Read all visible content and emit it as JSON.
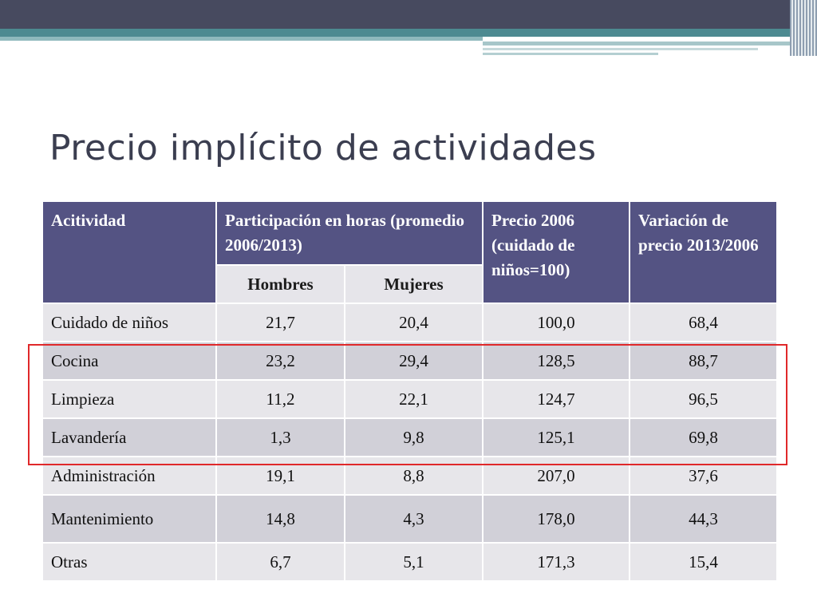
{
  "slide": {
    "title": "Precio implícito de actividades"
  },
  "table": {
    "headers": {
      "activity": "Acitividad",
      "participation": "Participación en horas (promedio 2006/2013)",
      "price_2006": "Precio 2006 (cuidado de niños=100)",
      "variation": "Variación de precio 2013/2006",
      "men": "Hombres",
      "women": "Mujeres"
    },
    "rows": [
      {
        "activity": "Cuidado de niños",
        "men": "21,7",
        "women": "20,4",
        "price_2006": "100,0",
        "variation": "68,4"
      },
      {
        "activity": "Cocina",
        "men": "23,2",
        "women": "29,4",
        "price_2006": "128,5",
        "variation": "88,7"
      },
      {
        "activity": "Limpieza",
        "men": "11,2",
        "women": "22,1",
        "price_2006": "124,7",
        "variation": "96,5"
      },
      {
        "activity": "Lavandería",
        "men": "1,3",
        "women": "9,8",
        "price_2006": "125,1",
        "variation": "69,8"
      },
      {
        "activity": "Administración",
        "men": "19,1",
        "women": "8,8",
        "price_2006": "207,0",
        "variation": "37,6"
      },
      {
        "activity": "Mantenimiento",
        "men": "14,8",
        "women": "4,3",
        "price_2006": "178,0",
        "variation": "44,3"
      },
      {
        "activity": "Otras",
        "men": "6,7",
        "women": "5,1",
        "price_2006": "171,3",
        "variation": "15,4"
      }
    ]
  },
  "colors": {
    "header_bg": "#545383",
    "row_light": "#e7e6ea",
    "row_dark": "#d1d0d8",
    "highlight": "#e0282a",
    "top_bar": "#474a5f",
    "teal_accent": "#4d8a91"
  }
}
